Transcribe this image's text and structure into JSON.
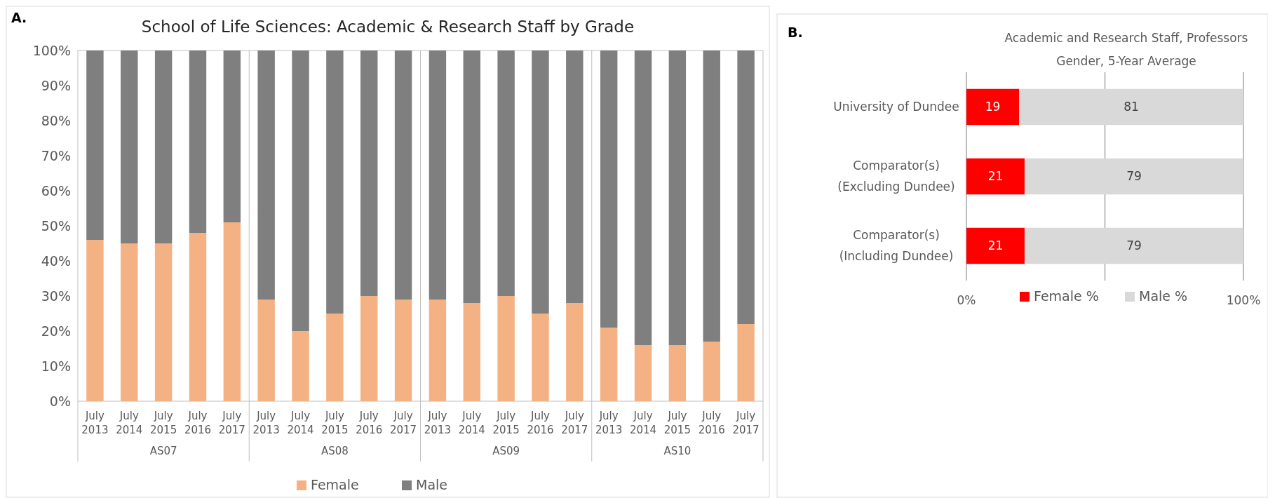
{
  "chart_data": [
    {
      "type": "bar",
      "title": "School of Life Sciences: Academic & Research Staff by Grade",
      "stacked": true,
      "categories": [
        "July 2013",
        "July 2014",
        "July 2015",
        "July 2016",
        "July 2017",
        "July 2013",
        "July 2014",
        "July 2015",
        "July 2016",
        "July 2017",
        "July 2013",
        "July 2014",
        "July 2015",
        "July 2016",
        "July 2017",
        "July 2013",
        "July 2014",
        "July 2015",
        "July 2016",
        "July 2017"
      ],
      "series": [
        {
          "name": "Female",
          "color": "#f4b183",
          "values": [
            46,
            45,
            45,
            48,
            51,
            29,
            20,
            25,
            30,
            29,
            29,
            28,
            30,
            25,
            28,
            21,
            16,
            16,
            17,
            22
          ]
        },
        {
          "name": "Male",
          "color": "#7f7f7f",
          "values": [
            54,
            55,
            55,
            52,
            49,
            71,
            80,
            75,
            70,
            71,
            71,
            72,
            70,
            75,
            72,
            79,
            84,
            84,
            83,
            78
          ]
        }
      ],
      "ylim": [
        0,
        100
      ],
      "yticks": [
        {
          "value": 0,
          "label": "0%"
        },
        {
          "value": 10,
          "label": "10%"
        },
        {
          "value": 20,
          "label": "20%"
        },
        {
          "value": 30,
          "label": "30%"
        },
        {
          "value": 40,
          "label": "40%"
        },
        {
          "value": 50,
          "label": "50%"
        },
        {
          "value": 60,
          "label": "60%"
        },
        {
          "value": 70,
          "label": "70%"
        },
        {
          "value": 80,
          "label": "80%"
        },
        {
          "value": 90,
          "label": "90%"
        },
        {
          "value": 100,
          "label": "100%"
        }
      ],
      "legend": "bottom",
      "annotations": [
        "A.",
        "AS07",
        "AS08",
        "AS09",
        "AS10"
      ]
    },
    {
      "type": "bar",
      "title": "Academic and Research Staff,  Professors",
      "subtitle": "Gender, 5-Year Average",
      "stacked": true,
      "orientation": "horizontal",
      "data_labels": true,
      "categories": [
        "University of Dundee",
        "Comparator(s)\n(Excluding Dundee)",
        "Comparator(s)\n(Including Dundee)"
      ],
      "series": [
        {
          "name": "Female %",
          "color": "#ff0000",
          "values": [
            19,
            21,
            21
          ]
        },
        {
          "name": "Male %",
          "color": "#d9d9d9",
          "values": [
            81,
            79,
            79
          ]
        }
      ],
      "xlim": [
        0,
        100
      ],
      "xticks": [
        {
          "value": 0,
          "label": "0%"
        },
        {
          "value": 50,
          "label": null
        },
        {
          "value": 100,
          "label": "100%"
        }
      ],
      "grid": "x",
      "legend": "bottom",
      "annotations": [
        "B."
      ]
    }
  ]
}
